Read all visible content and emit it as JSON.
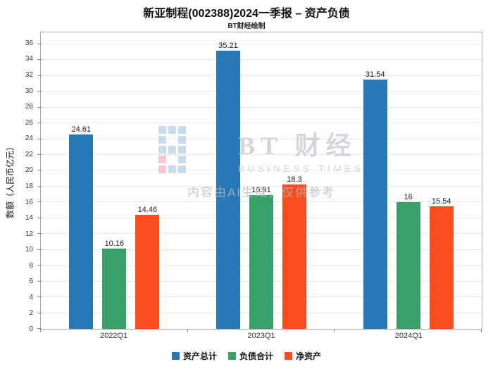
{
  "chart_data": {
    "type": "bar",
    "title": "新亚制程(002388)2024一季报 – 资产负债",
    "subtitle": "BT财经绘制",
    "categories": [
      "2022Q1",
      "2023Q1",
      "2024Q1"
    ],
    "series": [
      {
        "name": "资产总计",
        "color": "#2878B5",
        "values": [
          24.61,
          35.21,
          31.54
        ]
      },
      {
        "name": "负债合计",
        "color": "#38A169",
        "values": [
          10.16,
          16.91,
          16
        ]
      },
      {
        "name": "净资产",
        "color": "#F94D1F",
        "values": [
          14.46,
          18.3,
          15.54
        ]
      }
    ],
    "xlabel": "",
    "ylabel": "数额（人民币亿元）",
    "ylim": [
      0,
      37.5
    ],
    "ytick_step": 2,
    "ytick_max": 36,
    "grid": true,
    "legend_position": "bottom"
  },
  "watermark": {
    "logo_text": "BT 财经",
    "logo_sub": "BUSINESS TIMES",
    "disclaimer": "内容由AI生成，仅供参考"
  }
}
